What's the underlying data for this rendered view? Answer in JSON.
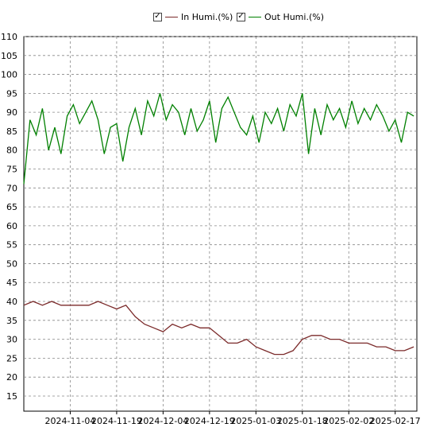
{
  "legend": {
    "items": [
      {
        "label": "In Humi.(%)",
        "color": "#7b2a2a",
        "checked": true,
        "check_icon": "checkmark-icon"
      },
      {
        "label": "Out Humi.(%)",
        "color": "#008000",
        "checked": true,
        "check_icon": "checkmark-icon"
      }
    ]
  },
  "chart_data": {
    "type": "line",
    "title": "",
    "xlabel": "",
    "ylabel": "",
    "ylim": [
      11,
      110
    ],
    "y_ticks": [
      15,
      20,
      25,
      30,
      35,
      40,
      45,
      50,
      55,
      60,
      65,
      70,
      75,
      80,
      85,
      90,
      95,
      100,
      105,
      110
    ],
    "x_range": [
      "2024-10-20",
      "2025-02-24"
    ],
    "x_ticks": [
      "2024-11-04",
      "2024-11-19",
      "2024-12-04",
      "2024-12-19",
      "2025-01-03",
      "2025-01-18",
      "2025-02-02",
      "2025-02-17"
    ],
    "grid": true,
    "series": [
      {
        "name": "In Humi.(%)",
        "color": "#7b2a2a",
        "x": [
          "2024-10-20",
          "2024-10-23",
          "2024-10-26",
          "2024-10-29",
          "2024-11-01",
          "2024-11-04",
          "2024-11-07",
          "2024-11-10",
          "2024-11-13",
          "2024-11-16",
          "2024-11-19",
          "2024-11-22",
          "2024-11-25",
          "2024-11-28",
          "2024-12-01",
          "2024-12-04",
          "2024-12-07",
          "2024-12-10",
          "2024-12-13",
          "2024-12-16",
          "2024-12-19",
          "2024-12-22",
          "2024-12-25",
          "2024-12-28",
          "2024-12-31",
          "2025-01-03",
          "2025-01-06",
          "2025-01-09",
          "2025-01-12",
          "2025-01-15",
          "2025-01-18",
          "2025-01-21",
          "2025-01-24",
          "2025-01-27",
          "2025-01-30",
          "2025-02-02",
          "2025-02-05",
          "2025-02-08",
          "2025-02-11",
          "2025-02-14",
          "2025-02-17",
          "2025-02-20",
          "2025-02-23"
        ],
        "y": [
          39,
          40,
          39,
          40,
          39,
          39,
          39,
          39,
          40,
          39,
          38,
          39,
          36,
          34,
          33,
          32,
          34,
          33,
          34,
          33,
          33,
          31,
          29,
          29,
          30,
          28,
          27,
          26,
          26,
          27,
          30,
          31,
          31,
          30,
          30,
          29,
          29,
          29,
          28,
          28,
          27,
          27,
          28
        ]
      },
      {
        "name": "Out Humi.(%)",
        "color": "#008000",
        "x": [
          "2024-10-20",
          "2024-10-22",
          "2024-10-24",
          "2024-10-26",
          "2024-10-28",
          "2024-10-30",
          "2024-11-01",
          "2024-11-03",
          "2024-11-05",
          "2024-11-07",
          "2024-11-09",
          "2024-11-11",
          "2024-11-13",
          "2024-11-15",
          "2024-11-17",
          "2024-11-19",
          "2024-11-21",
          "2024-11-23",
          "2024-11-25",
          "2024-11-27",
          "2024-11-29",
          "2024-12-01",
          "2024-12-03",
          "2024-12-05",
          "2024-12-07",
          "2024-12-09",
          "2024-12-11",
          "2024-12-13",
          "2024-12-15",
          "2024-12-17",
          "2024-12-19",
          "2024-12-21",
          "2024-12-23",
          "2024-12-25",
          "2024-12-27",
          "2024-12-29",
          "2024-12-31",
          "2025-01-02",
          "2025-01-04",
          "2025-01-06",
          "2025-01-08",
          "2025-01-10",
          "2025-01-12",
          "2025-01-14",
          "2025-01-16",
          "2025-01-18",
          "2025-01-20",
          "2025-01-22",
          "2025-01-24",
          "2025-01-26",
          "2025-01-28",
          "2025-01-30",
          "2025-02-01",
          "2025-02-03",
          "2025-02-05",
          "2025-02-07",
          "2025-02-09",
          "2025-02-11",
          "2025-02-13",
          "2025-02-15",
          "2025-02-17",
          "2025-02-19",
          "2025-02-21",
          "2025-02-23"
        ],
        "y": [
          71,
          88,
          84,
          91,
          80,
          86,
          79,
          89,
          92,
          87,
          90,
          93,
          88,
          79,
          86,
          87,
          77,
          86,
          91,
          84,
          93,
          89,
          95,
          88,
          92,
          90,
          84,
          91,
          85,
          88,
          93,
          82,
          91,
          94,
          90,
          86,
          84,
          89,
          82,
          90,
          87,
          91,
          85,
          92,
          89,
          95,
          79,
          91,
          84,
          92,
          88,
          91,
          86,
          93,
          87,
          91,
          88,
          92,
          89,
          85,
          88,
          82,
          90,
          89
        ]
      }
    ]
  }
}
